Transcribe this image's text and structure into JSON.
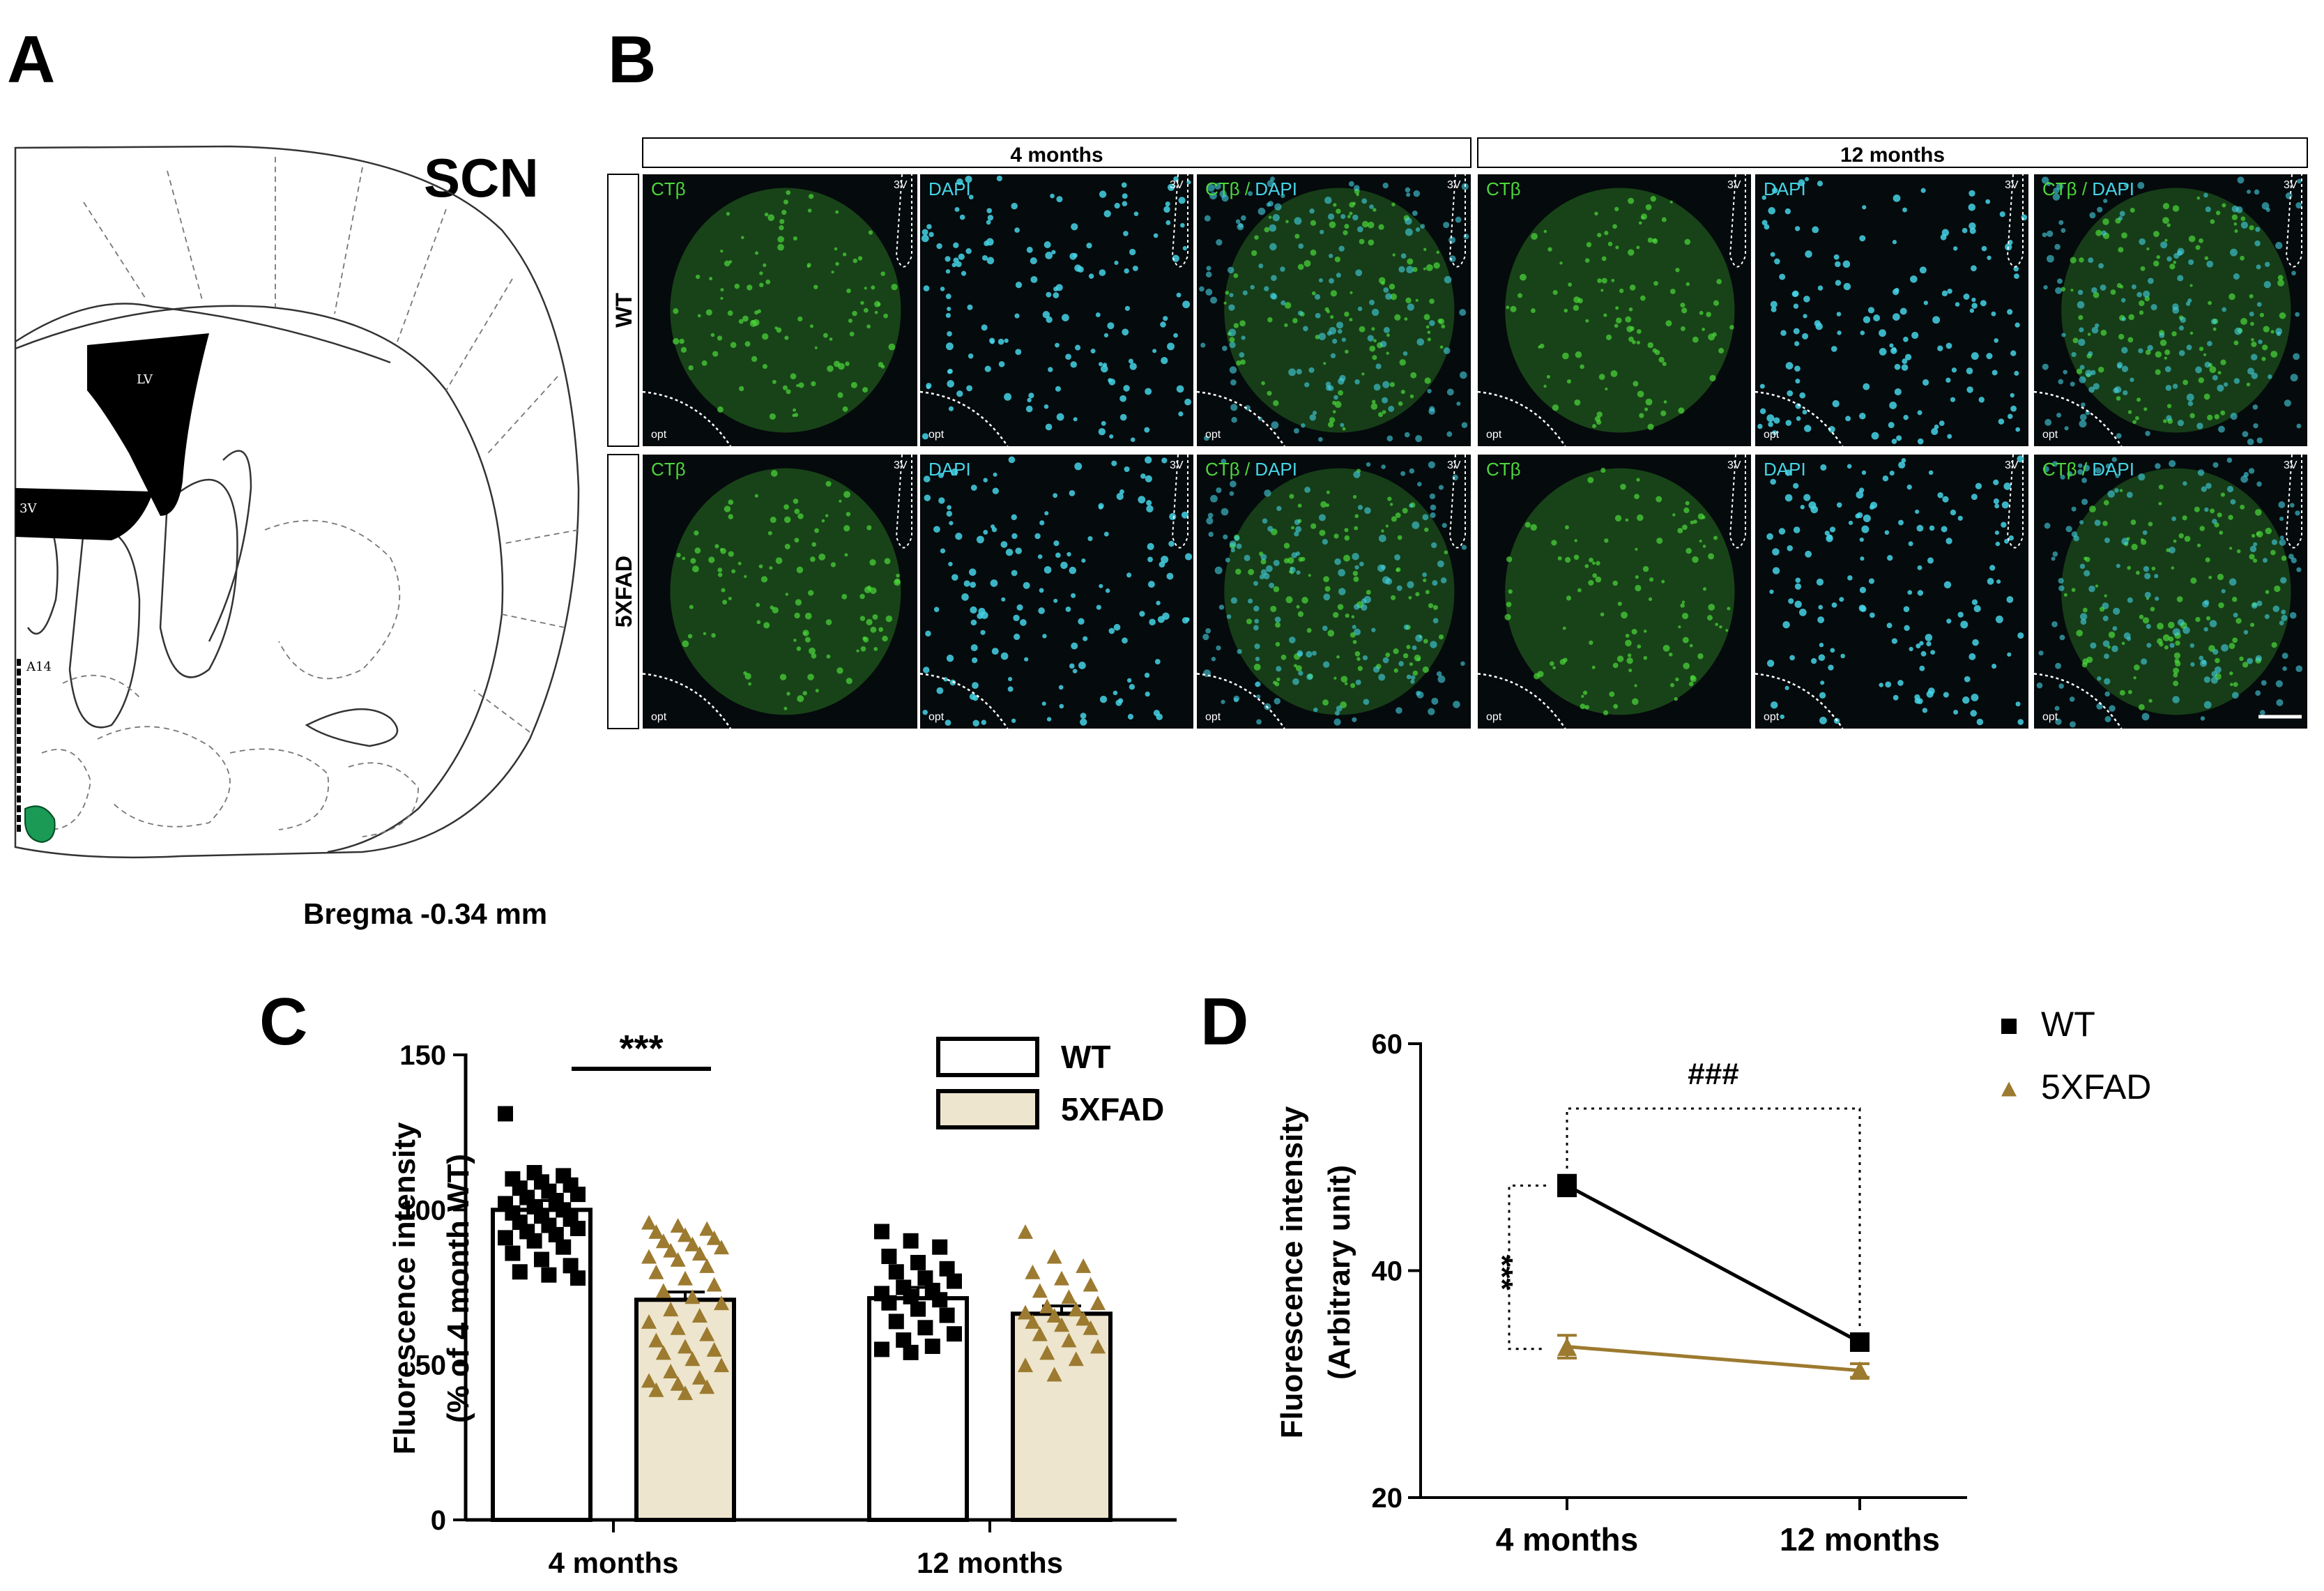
{
  "panel_letters": {
    "a": "A",
    "b": "B",
    "c": "C",
    "d": "D"
  },
  "panel_a": {
    "region_label": "SCN",
    "bregma_label": "Bregma -0.34 mm",
    "atlas_labels": {
      "lv": "LV",
      "third_v": "3V",
      "a14": "A14"
    },
    "highlight_color": "#1a9a55"
  },
  "panel_b": {
    "age_groups": [
      "4 months",
      "12 months"
    ],
    "genotypes": [
      "WT",
      "5XFAD"
    ],
    "channel_labels": [
      {
        "first": "CTβ",
        "second": ""
      },
      {
        "first": "DAPI",
        "second": ""
      },
      {
        "first": "CTβ",
        "second": "DAPI"
      }
    ],
    "channel_separator": " / ",
    "ventricle_label": "3V",
    "optic_label": "opt",
    "colors": {
      "ctb": "#4cd83a",
      "dapi": "#45d4e6",
      "background": "#050a0c"
    }
  },
  "chart_data": [
    {
      "type": "bar",
      "panel": "C",
      "categories": [
        "4 months",
        "12 months"
      ],
      "ylabel": [
        "Fluorescence intensity",
        "(% of 4 month WT)"
      ],
      "xlabel": "",
      "ylim": [
        0,
        150
      ],
      "yticks": [
        0,
        50,
        100,
        150
      ],
      "legend": {
        "placement": "top-right"
      },
      "significance": "***",
      "series": [
        {
          "name": "WT",
          "marker": "square",
          "fill": "#ffffff",
          "mean": [
            100,
            71.5
          ],
          "sem": [
            3,
            3.5
          ],
          "points": [
            [
              131,
              112,
              111,
              110,
              109,
              108,
              107,
              106,
              105,
              104,
              103,
              102,
              101,
              100,
              99,
              98,
              97,
              96,
              95,
              94,
              93,
              92,
              91,
              90,
              88,
              86,
              84,
              82,
              80,
              79,
              78
            ],
            [
              93,
              90,
              88,
              85,
              83,
              81,
              80,
              78,
              77,
              75,
              74,
              73,
              72,
              71,
              70,
              68,
              66,
              64,
              62,
              60,
              58,
              56,
              55,
              54
            ]
          ]
        },
        {
          "name": "5XFAD",
          "marker": "triangle",
          "fill": "#ede5cd",
          "mean": [
            71,
            66.5
          ],
          "sem": [
            2.5,
            2.5
          ],
          "points": [
            [
              96,
              95,
              94,
              93,
              92,
              91,
              90,
              89,
              88,
              87,
              86,
              85,
              84,
              82,
              80,
              78,
              76,
              74,
              72,
              70,
              68,
              66,
              64,
              62,
              60,
              58,
              56,
              55,
              54,
              52,
              50,
              48,
              46,
              45,
              44,
              43,
              42,
              41
            ],
            [
              93,
              85,
              82,
              80,
              78,
              76,
              74,
              72,
              70,
              69,
              68,
              67,
              66,
              65,
              64,
              63,
              62,
              60,
              58,
              56,
              54,
              52,
              50,
              47
            ]
          ]
        }
      ]
    },
    {
      "type": "line",
      "panel": "D",
      "x": [
        "4 months",
        "12 months"
      ],
      "ylabel": [
        "Fluorescence intensity",
        "(Arbitrary unit)"
      ],
      "xlabel": "",
      "ylim": [
        20,
        60
      ],
      "yticks": [
        20,
        40,
        60
      ],
      "legend": {
        "placement": "top-right"
      },
      "annotations": {
        "between_ages_wt": "###",
        "between_genotypes_4m": "***"
      },
      "series": [
        {
          "name": "WT",
          "marker": "square",
          "color": "#000000",
          "values": [
            47.5,
            33.7
          ],
          "sem": [
            0.9,
            0.6
          ]
        },
        {
          "name": "5XFAD",
          "marker": "triangle",
          "color": "#9c7a2f",
          "values": [
            33.3,
            31.2
          ],
          "sem": [
            1.0,
            0.6
          ]
        }
      ]
    }
  ]
}
